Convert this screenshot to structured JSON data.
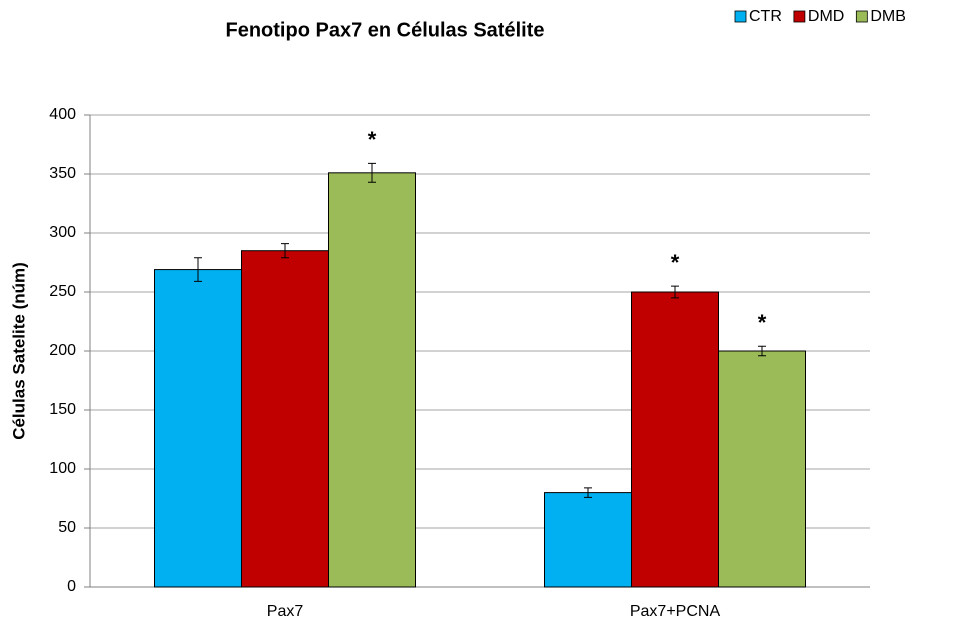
{
  "chart_data": {
    "type": "bar",
    "title": "Fenotipo Pax7 en Células Satélite",
    "y_label": "Células Satelite (núm)",
    "categories": [
      "Pax7",
      "Pax7+PCNA"
    ],
    "series": [
      {
        "name": "CTR",
        "color": "#00b0f0",
        "values": [
          269,
          80
        ],
        "errors": [
          10,
          4
        ]
      },
      {
        "name": "DMD",
        "color": "#c00000",
        "values": [
          285,
          250
        ],
        "errors": [
          6,
          5
        ]
      },
      {
        "name": "DMB",
        "color": "#9bbb59",
        "values": [
          351,
          200
        ],
        "errors": [
          8,
          4
        ]
      }
    ],
    "annotations": [
      {
        "text": "*",
        "category": "Pax7",
        "series": "DMB"
      },
      {
        "text": "*",
        "category": "Pax7+PCNA",
        "series": "DMD"
      },
      {
        "text": "*",
        "category": "Pax7+PCNA",
        "series": "DMB"
      }
    ],
    "ylim": [
      0,
      400
    ],
    "yticks": [
      0,
      50,
      100,
      150,
      200,
      250,
      300,
      350,
      400
    ],
    "grid": true,
    "legend": "top-right"
  }
}
